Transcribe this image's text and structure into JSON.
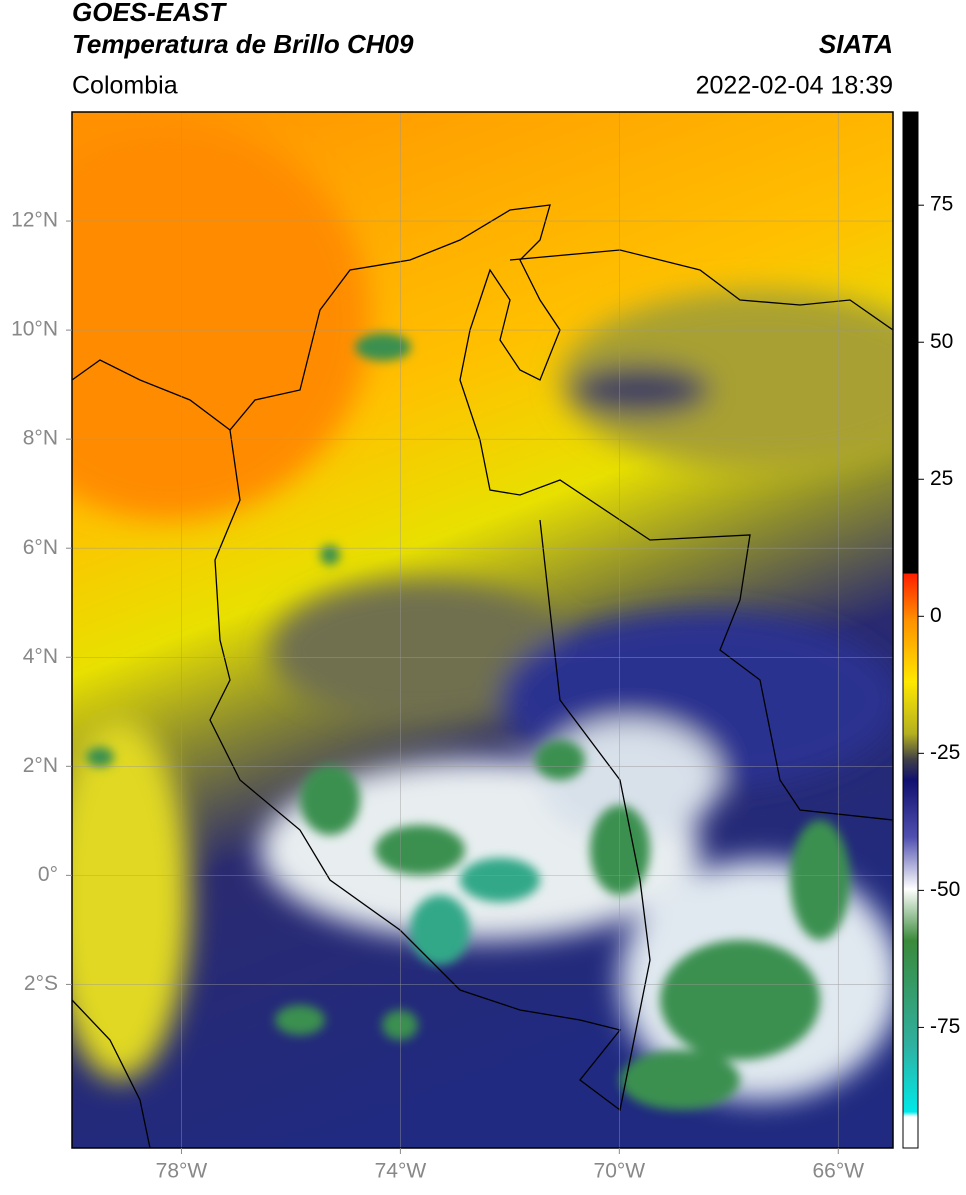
{
  "header": {
    "title": "GOES-EAST",
    "subtitle": "Temperatura de Brillo CH09",
    "region": "Colombia",
    "source": "SIATA",
    "datetime": "2022-02-04 18:39"
  },
  "map": {
    "xlim": [
      -80,
      -65
    ],
    "ylim": [
      -5,
      14
    ],
    "xticks": [
      {
        "value": -78,
        "label": "78°W"
      },
      {
        "value": -74,
        "label": "74°W"
      },
      {
        "value": -70,
        "label": "70°W"
      },
      {
        "value": -66,
        "label": "66°W"
      }
    ],
    "yticks": [
      {
        "value": 12,
        "label": "12°N"
      },
      {
        "value": 10,
        "label": "10°N"
      },
      {
        "value": 8,
        "label": "8°N"
      },
      {
        "value": 6,
        "label": "6°N"
      },
      {
        "value": 4,
        "label": "4°N"
      },
      {
        "value": 2,
        "label": "2°N"
      },
      {
        "value": 0,
        "label": "0°"
      },
      {
        "value": -2,
        "label": "2°S"
      }
    ],
    "grid": true
  },
  "colorbar": {
    "lim": [
      -97,
      92
    ],
    "ticks": [
      75,
      50,
      25,
      0,
      -25,
      -50,
      -75
    ]
  }
}
